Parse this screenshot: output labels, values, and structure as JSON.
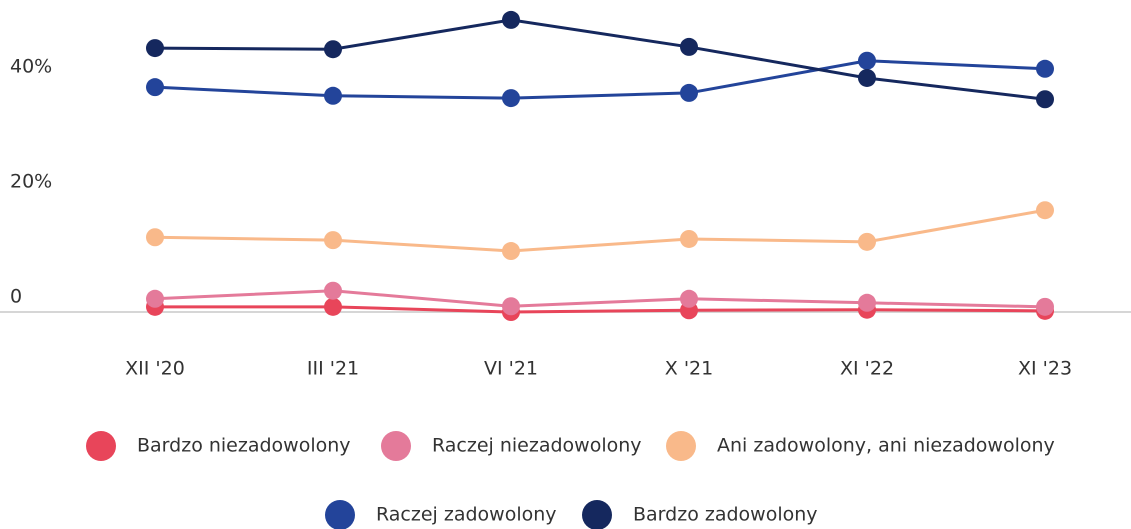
{
  "chart_data": {
    "type": "line",
    "categories": [
      "XII '20",
      "III '21",
      "VI '21",
      "X '21",
      "XI '22",
      "XI '23"
    ],
    "series": [
      {
        "name": "Bardzo niezadowolony",
        "color": "#e8455a",
        "values": [
          0.9,
          0.9,
          0,
          0.3,
          0.4,
          0.2
        ]
      },
      {
        "name": "Raczej niezadowolony",
        "color": "#e47a9a",
        "values": [
          2.3,
          3.7,
          1.0,
          2.3,
          1.6,
          0.9
        ]
      },
      {
        "name": "Ani zadowolony, ani niezadowolony",
        "color": "#f9b98a",
        "values": [
          13.0,
          12.5,
          10.6,
          12.7,
          12.2,
          17.7
        ]
      },
      {
        "name": "Raczej zadowolony",
        "color": "#23449a",
        "values": [
          39.1,
          37.6,
          37.2,
          38.1,
          43.7,
          42.3
        ]
      },
      {
        "name": "Bardzo zadowolony",
        "color": "#15285e",
        "values": [
          45.9,
          45.7,
          50.8,
          46.1,
          40.7,
          37.0
        ]
      }
    ],
    "ylim": [
      -3,
      55
    ],
    "yticks": [
      0,
      {
        "value": 20,
        "label": "20%"
      },
      {
        "value": 40,
        "label": "40%"
      }
    ]
  }
}
